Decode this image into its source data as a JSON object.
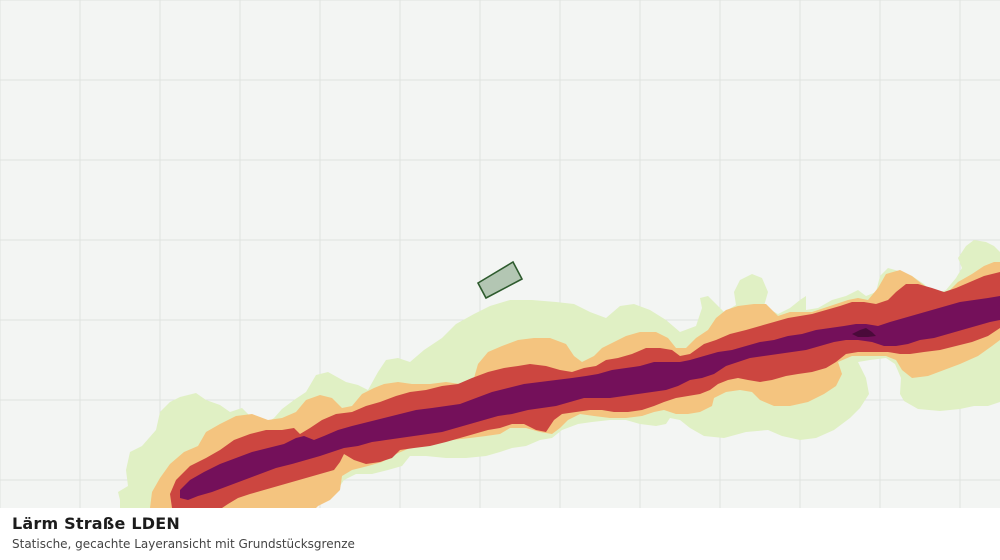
{
  "map": {
    "background_color": "#f3f5f3",
    "grid_color": "#dfe2df",
    "noise_band_colors": [
      "#e0f0c4",
      "#f4c47f",
      "#cc4640",
      "#74105a",
      "#4a0a3a"
    ],
    "parcel_fill_color": "#b3c6b3",
    "parcel_stroke_color": "#2e5b2e"
  },
  "caption": {
    "title": "Lärm Straße LDEN",
    "subtitle": "Statische, gecachte Layeransicht mit Grundstücksgrenze"
  }
}
